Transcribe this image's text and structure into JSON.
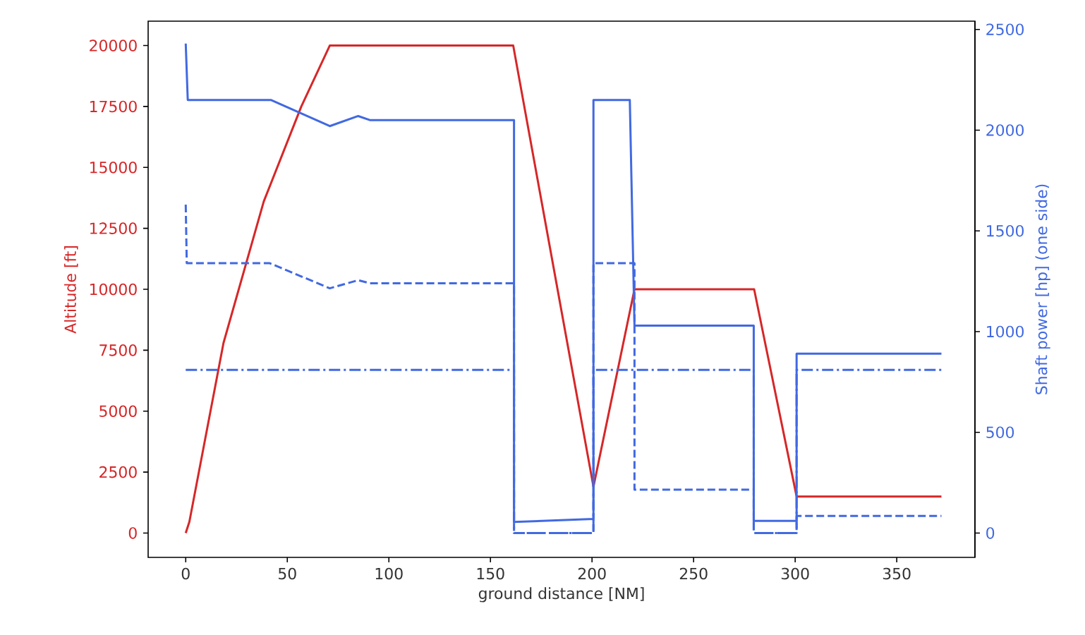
{
  "chart_data": {
    "type": "line",
    "xlabel": "ground distance [NM]",
    "ylabel": "Altitude [ft]",
    "y2label": "Shaft power [hp] (one side)",
    "xlim": [
      -18.5,
      388.5
    ],
    "xticks": [
      0,
      50,
      100,
      150,
      200,
      250,
      300,
      350
    ],
    "ylim": [
      -1000,
      21000
    ],
    "yticks": [
      0,
      2500,
      5000,
      7500,
      10000,
      12500,
      15000,
      17500,
      20000
    ],
    "y2lim": [
      -121,
      2541
    ],
    "y2ticks": [
      0,
      500,
      1000,
      1500,
      2000,
      2500
    ],
    "series": [
      {
        "color": "#d62728",
        "line_style": "solid",
        "x": [
          0,
          1.8,
          18.6,
          38.4,
          56.9,
          70.9,
          161.2,
          200.7,
          220.9,
          279.8,
          300.7,
          372
        ],
        "values": [
          0,
          460,
          7800,
          13600,
          17500,
          20000,
          20000,
          1900,
          10000,
          10000,
          1500,
          1500
        ]
      },
      {
        "color": "#4169e1",
        "axis": "y2",
        "line_style": "solid",
        "x": [
          0,
          1,
          41.9,
          70.9,
          84.9,
          90.6,
          161.6,
          161.6,
          200.7,
          200.7,
          218.6,
          220.9,
          279.6,
          279.6,
          300.7,
          300.7,
          372
        ],
        "values": [
          2430,
          2150,
          2150,
          2020,
          2070,
          2050,
          2050,
          55,
          70,
          2150,
          2150,
          1030,
          1030,
          60,
          60,
          890,
          890
        ]
      },
      {
        "color": "#4169e1",
        "axis": "y2",
        "line_style": "dashed",
        "x": [
          0,
          0.5,
          41.2,
          70.9,
          84.9,
          90.6,
          161.6,
          161.6,
          200.7,
          200.7,
          220.9,
          220.9,
          279.6,
          279.6,
          300.7,
          300.7,
          372
        ],
        "values": [
          1630,
          1340,
          1340,
          1215,
          1255,
          1240,
          1240,
          0,
          0,
          1340,
          1340,
          215,
          215,
          0,
          0,
          85,
          85
        ]
      },
      {
        "color": "#4169e1",
        "axis": "y2",
        "line_style": "dashdot",
        "x": [
          0,
          161.6,
          161.6,
          200.7,
          200.7,
          279.6,
          279.6,
          300.7,
          300.7,
          372
        ],
        "values": [
          810,
          810,
          0,
          0,
          810,
          810,
          0,
          0,
          810,
          810
        ]
      }
    ]
  }
}
